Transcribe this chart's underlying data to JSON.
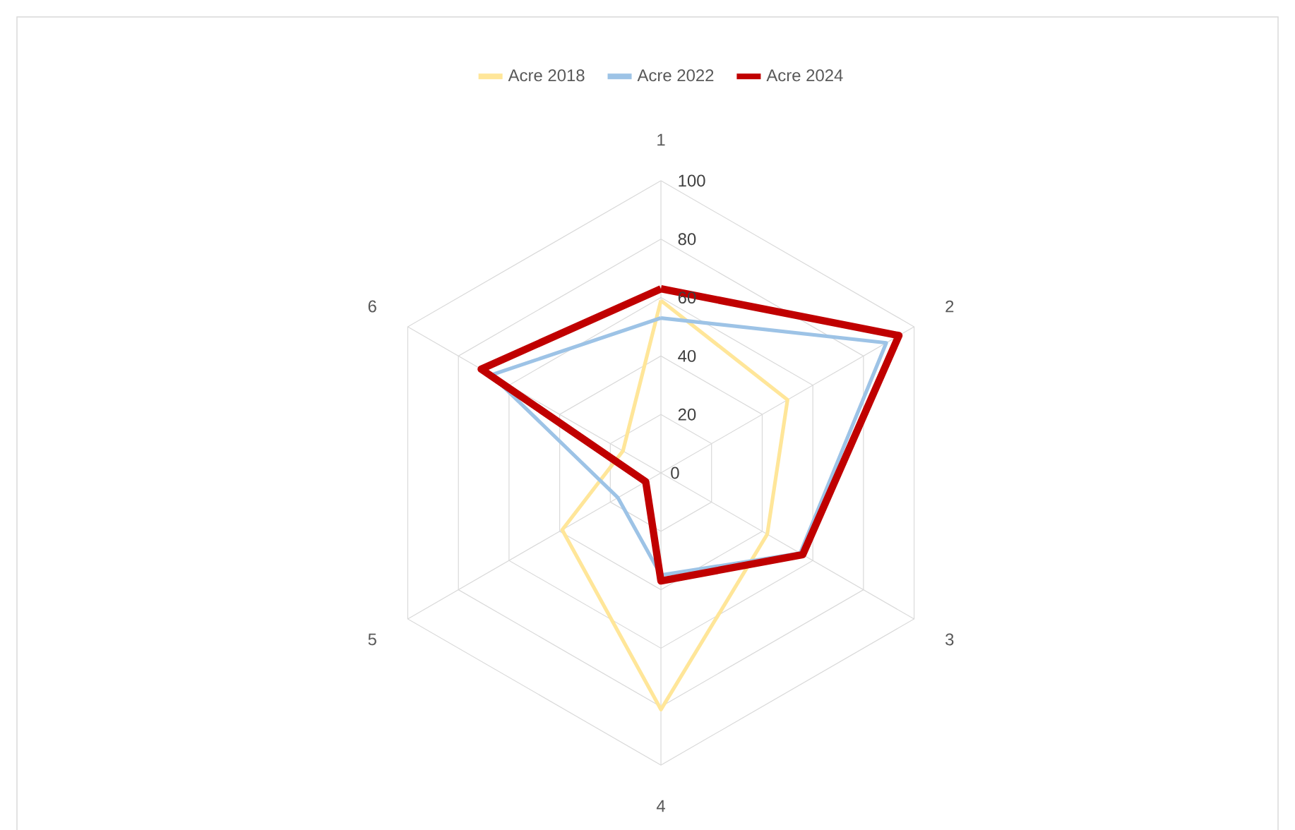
{
  "chart_data": {
    "type": "radar",
    "categories": [
      "1",
      "2",
      "3",
      "4",
      "5",
      "6"
    ],
    "series": [
      {
        "name": "Acre 2018",
        "color": "#ffe699",
        "values": [
          59,
          50,
          42,
          81,
          39,
          15
        ]
      },
      {
        "name": "Acre 2022",
        "color": "#9dc3e6",
        "values": [
          53,
          89,
          55,
          35,
          17,
          67
        ]
      },
      {
        "name": "Acre 2024",
        "color": "#c00000",
        "values": [
          63,
          94,
          56,
          37,
          6,
          71
        ]
      }
    ],
    "ylim": [
      0,
      100
    ],
    "yticks": [
      {
        "value": 0,
        "label": "0"
      },
      20,
      40,
      60,
      80,
      100
    ],
    "grid": true,
    "legend": "top"
  }
}
